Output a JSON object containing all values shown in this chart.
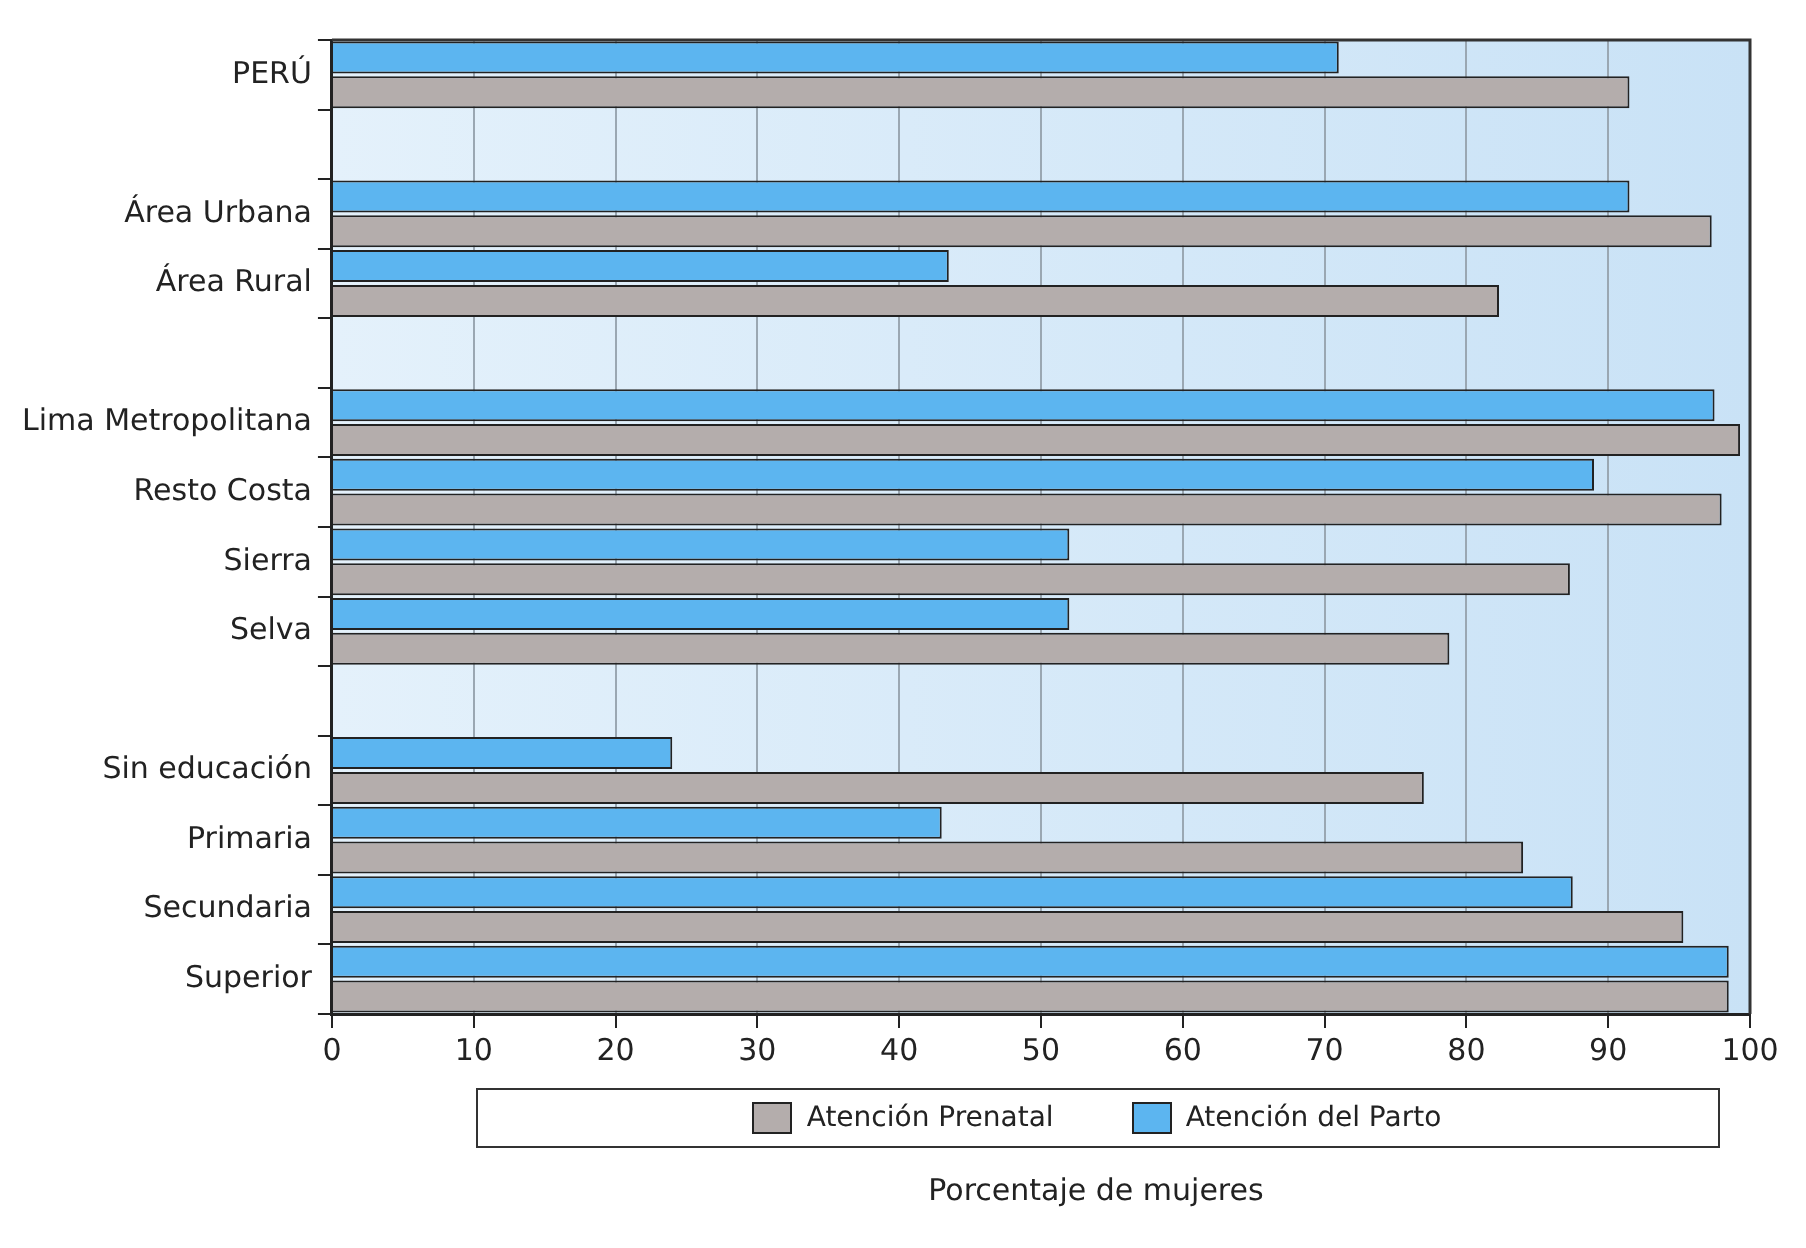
{
  "chart_data": {
    "type": "bar",
    "orientation": "horizontal",
    "xlabel": "Porcentaje de mujeres",
    "categories": [
      "PERÚ",
      null,
      "Área Urbana",
      "Área Rural",
      null,
      "Lima Metropolitana",
      "Resto Costa",
      "Sierra",
      "Selva",
      null,
      "Sin educación",
      "Primaria",
      "Secundaria",
      "Superior"
    ],
    "series": [
      {
        "name": "Atención del Parto",
        "color": "#5cb5f0",
        "values": [
          71,
          null,
          91.5,
          43.5,
          null,
          97.5,
          89,
          52,
          52,
          null,
          24,
          43,
          87.5,
          98.5
        ]
      },
      {
        "name": "Atención Prenatal",
        "color": "#b4adac",
        "values": [
          91.5,
          null,
          97.3,
          82.3,
          null,
          99.3,
          98,
          87.3,
          78.8,
          null,
          77,
          84,
          95.3,
          98.5
        ]
      }
    ],
    "xlim": [
      0,
      100
    ],
    "xticks": [
      0,
      10,
      20,
      30,
      40,
      50,
      60,
      70,
      80,
      90,
      100
    ],
    "grid": "x",
    "legend": "bottom"
  }
}
